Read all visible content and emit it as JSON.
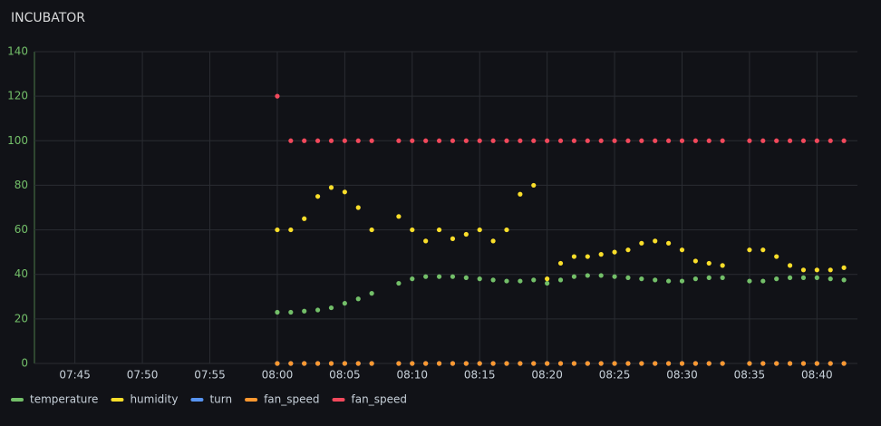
{
  "chart_data": {
    "type": "scatter",
    "title": "INCUBATOR",
    "x": [
      "08:00",
      "08:01",
      "08:02",
      "08:03",
      "08:04",
      "08:05",
      "08:06",
      "08:07",
      "08:08",
      "08:09",
      "08:10",
      "08:11",
      "08:12",
      "08:13",
      "08:14",
      "08:15",
      "08:16",
      "08:17",
      "08:18",
      "08:19",
      "08:20",
      "08:21",
      "08:22",
      "08:23",
      "08:24",
      "08:25",
      "08:26",
      "08:27",
      "08:28",
      "08:29",
      "08:30",
      "08:31",
      "08:32",
      "08:33",
      "08:34",
      "08:35",
      "08:36",
      "08:37",
      "08:38",
      "08:39",
      "08:40",
      "08:41",
      "08:42"
    ],
    "series": [
      {
        "name": "temperature",
        "color": "#73bf69",
        "values": [
          23,
          23,
          23.5,
          24,
          25,
          27,
          29,
          31.5,
          null,
          36,
          38,
          39,
          39,
          39,
          38.5,
          38,
          37.5,
          37,
          37,
          37.5,
          36,
          37.5,
          39,
          39.5,
          39.5,
          39,
          38.5,
          38,
          37.5,
          37,
          37,
          38,
          38.5,
          38.5,
          null,
          37,
          37,
          38,
          38.5,
          38.5,
          38.5,
          38,
          37.5
        ]
      },
      {
        "name": "humidity",
        "color": "#fade2a",
        "values": [
          60,
          60,
          65,
          75,
          79,
          77,
          70,
          60,
          null,
          66,
          60,
          55,
          60,
          56,
          58,
          60,
          55,
          60,
          76,
          80,
          38,
          45,
          48,
          48,
          49,
          50,
          51,
          54,
          55,
          54,
          51,
          46,
          45,
          44,
          null,
          51,
          51,
          48,
          44,
          42,
          42,
          42,
          43
        ]
      },
      {
        "name": "turn",
        "color": "#5794f2",
        "values": [
          0,
          0,
          0,
          0,
          0,
          0,
          0,
          0,
          null,
          0,
          0,
          0,
          0,
          0,
          0,
          0,
          0,
          0,
          0,
          0,
          0,
          0,
          0,
          0,
          0,
          0,
          0,
          0,
          0,
          0,
          0,
          0,
          0,
          0,
          null,
          0,
          0,
          0,
          0,
          0,
          0,
          0,
          0
        ]
      },
      {
        "name": "fan_speed",
        "color": "#ff9830",
        "values": [
          0,
          0,
          0,
          0,
          0,
          0,
          0,
          0,
          null,
          0,
          0,
          0,
          0,
          0,
          0,
          0,
          0,
          0,
          0,
          0,
          0,
          0,
          0,
          0,
          0,
          0,
          0,
          0,
          0,
          0,
          0,
          0,
          0,
          0,
          null,
          0,
          0,
          0,
          0,
          0,
          0,
          0,
          0
        ]
      },
      {
        "name": "fan_speed",
        "color": "#f2495c",
        "values": [
          120,
          100,
          100,
          100,
          100,
          100,
          100,
          100,
          null,
          100,
          100,
          100,
          100,
          100,
          100,
          100,
          100,
          100,
          100,
          100,
          100,
          100,
          100,
          100,
          100,
          100,
          100,
          100,
          100,
          100,
          100,
          100,
          100,
          100,
          null,
          100,
          100,
          100,
          100,
          100,
          100,
          100,
          100
        ]
      }
    ],
    "xlim": [
      "07:42",
      "08:43"
    ],
    "xticks": [
      "07:45",
      "07:50",
      "07:55",
      "08:00",
      "08:05",
      "08:10",
      "08:15",
      "08:20",
      "08:25",
      "08:30",
      "08:35",
      "08:40"
    ],
    "ylim": [
      0,
      140
    ],
    "yticks": [
      0,
      20,
      40,
      60,
      80,
      100,
      120,
      140
    ],
    "grid": true
  }
}
